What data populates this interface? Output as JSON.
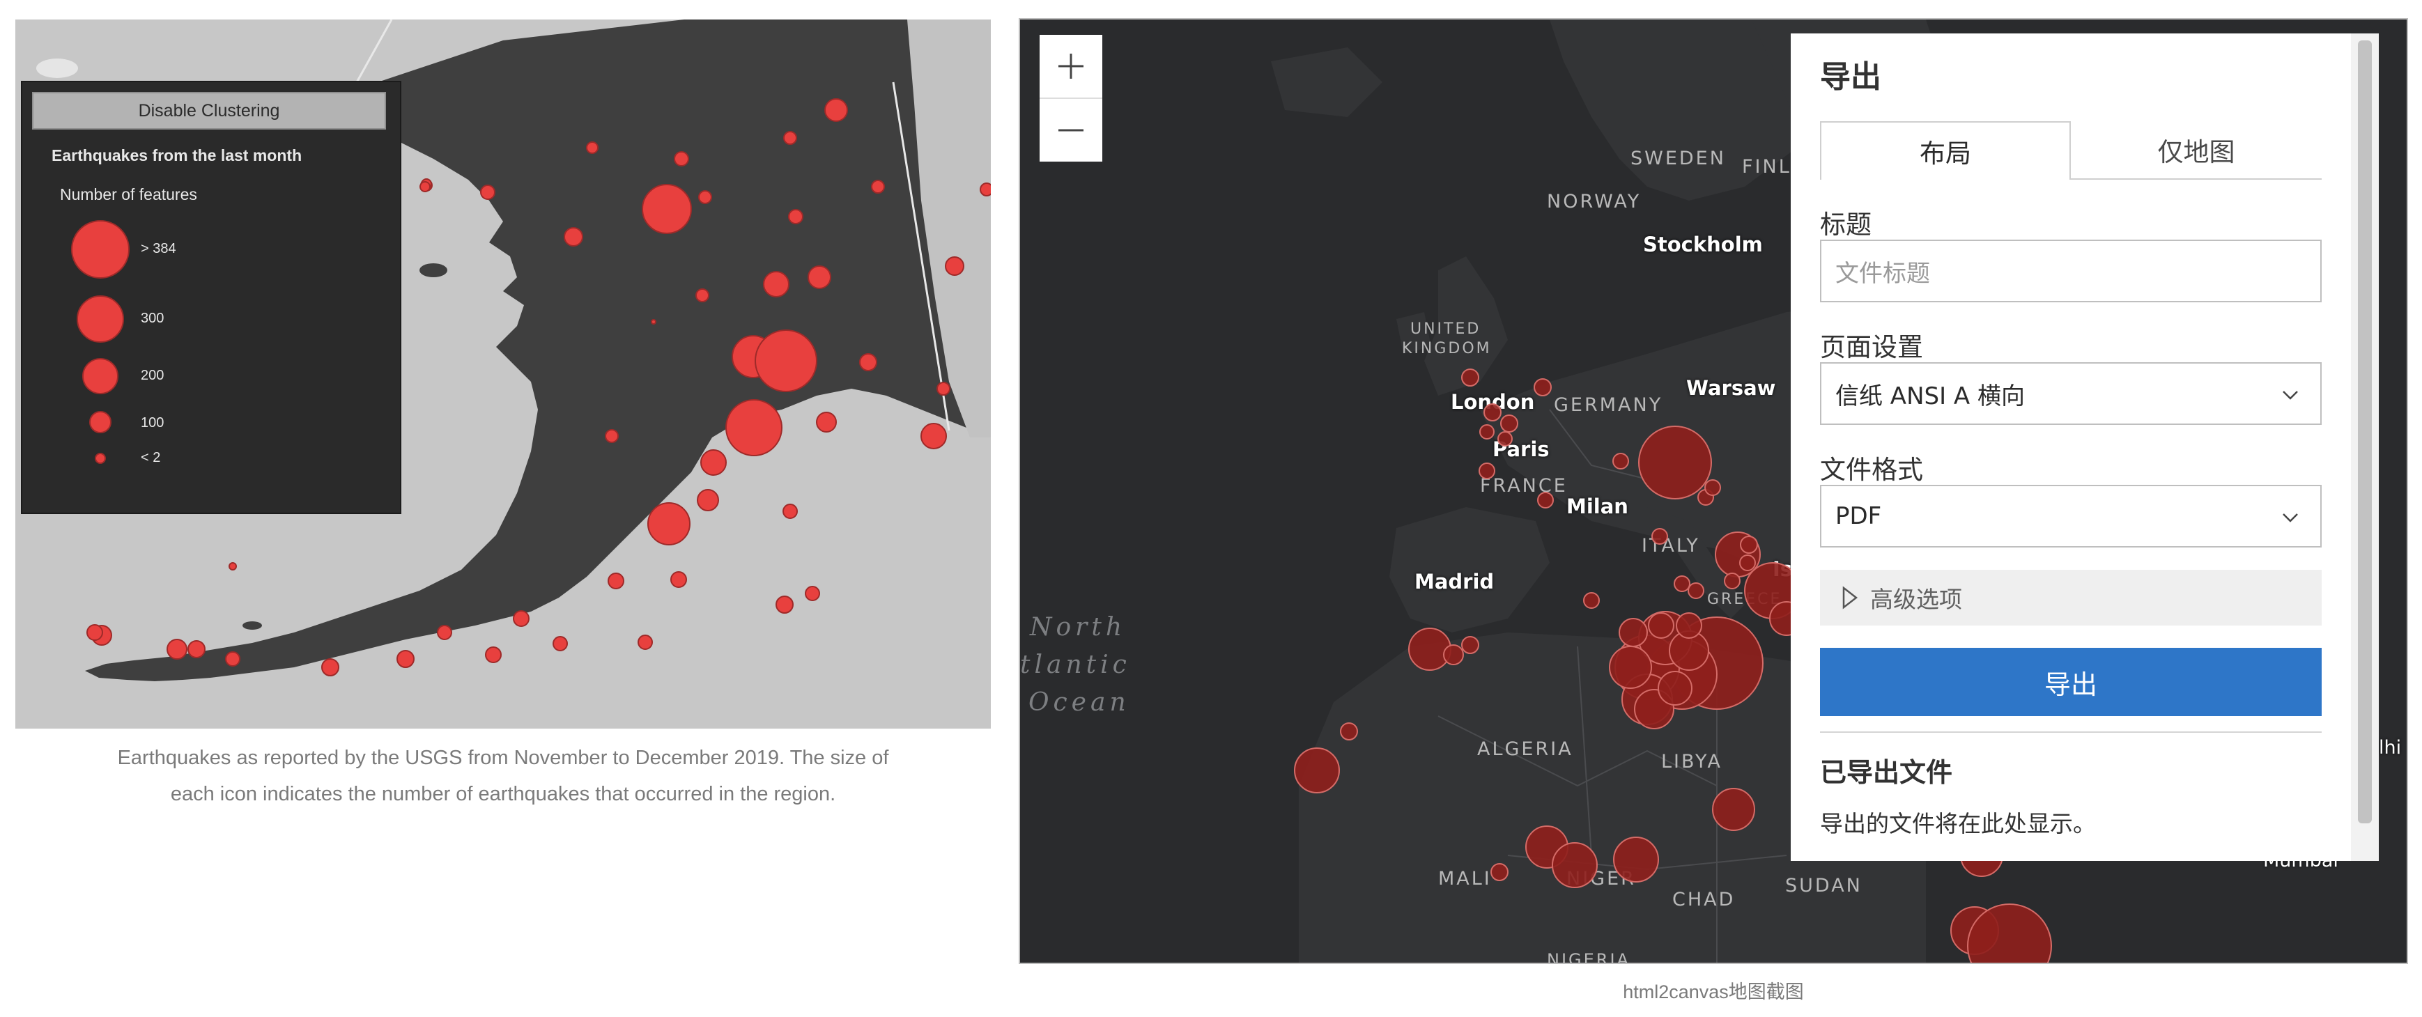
{
  "left_map": {
    "cluster_button": "Disable Clustering",
    "legend": {
      "title": "Earthquakes from the last month",
      "subtitle": "Number of features",
      "items": [
        {
          "label": "> 384"
        },
        {
          "label": "300"
        },
        {
          "label": "200"
        },
        {
          "label": "100"
        },
        {
          "label": "< 2"
        }
      ]
    },
    "caption_line1": "Earthquakes as reported by the USGS from November to December 2019. The size of",
    "caption_line2": "each icon indicates the number of earthquakes that occurred in the region."
  },
  "right_map": {
    "zoom_in": "+",
    "zoom_out": "—",
    "countries": {
      "sweden": "SWEDEN",
      "norway": "NORWAY",
      "fin": "FINL",
      "uk1": "UNITED",
      "uk2": "KINGDOM",
      "germany": "GERMANY",
      "france": "FRANCE",
      "italy": "ITALY",
      "greece": "GREECE",
      "algeria": "ALGERIA",
      "libya": "LIBYA",
      "mali": "MALI",
      "niger": "NIGER",
      "chad": "CHAD",
      "sudan": "SUDAN",
      "nigeria": "NIGERIA"
    },
    "cities": {
      "stockholm": "Stockholm",
      "warsaw": "Warsaw",
      "london": "London",
      "paris": "Paris",
      "milan": "Milan",
      "madrid": "Madrid",
      "is": "Is",
      "mumbai": "Mumbai",
      "lhi": "lhi"
    },
    "ocean": {
      "line1": "North",
      "line2": "tlantic",
      "line3": "Ocean"
    },
    "caption": "html2canvas地图截图"
  },
  "export_panel": {
    "title": "导出",
    "tabs": [
      {
        "label": "布局",
        "active": true
      },
      {
        "label": "仅地图",
        "active": false
      }
    ],
    "title_label": "标题",
    "title_placeholder": "文件标题",
    "page_setup_label": "页面设置",
    "page_setup_value": "信纸 ANSI A 横向",
    "format_label": "文件格式",
    "format_value": "PDF",
    "advanced_label": "高级选项",
    "export_button": "导出",
    "exported_title": "已导出文件",
    "exported_message": "导出的文件将在此处显示。"
  },
  "colors": {
    "accent": "#2e76c8",
    "quake_left": "#e8403e",
    "quake_right": "#8f1f1c"
  },
  "icons": {
    "zoom_in": "plus-icon",
    "zoom_out": "minus-icon",
    "select": "chevron-down-icon",
    "advanced": "triangle-right-icon"
  }
}
